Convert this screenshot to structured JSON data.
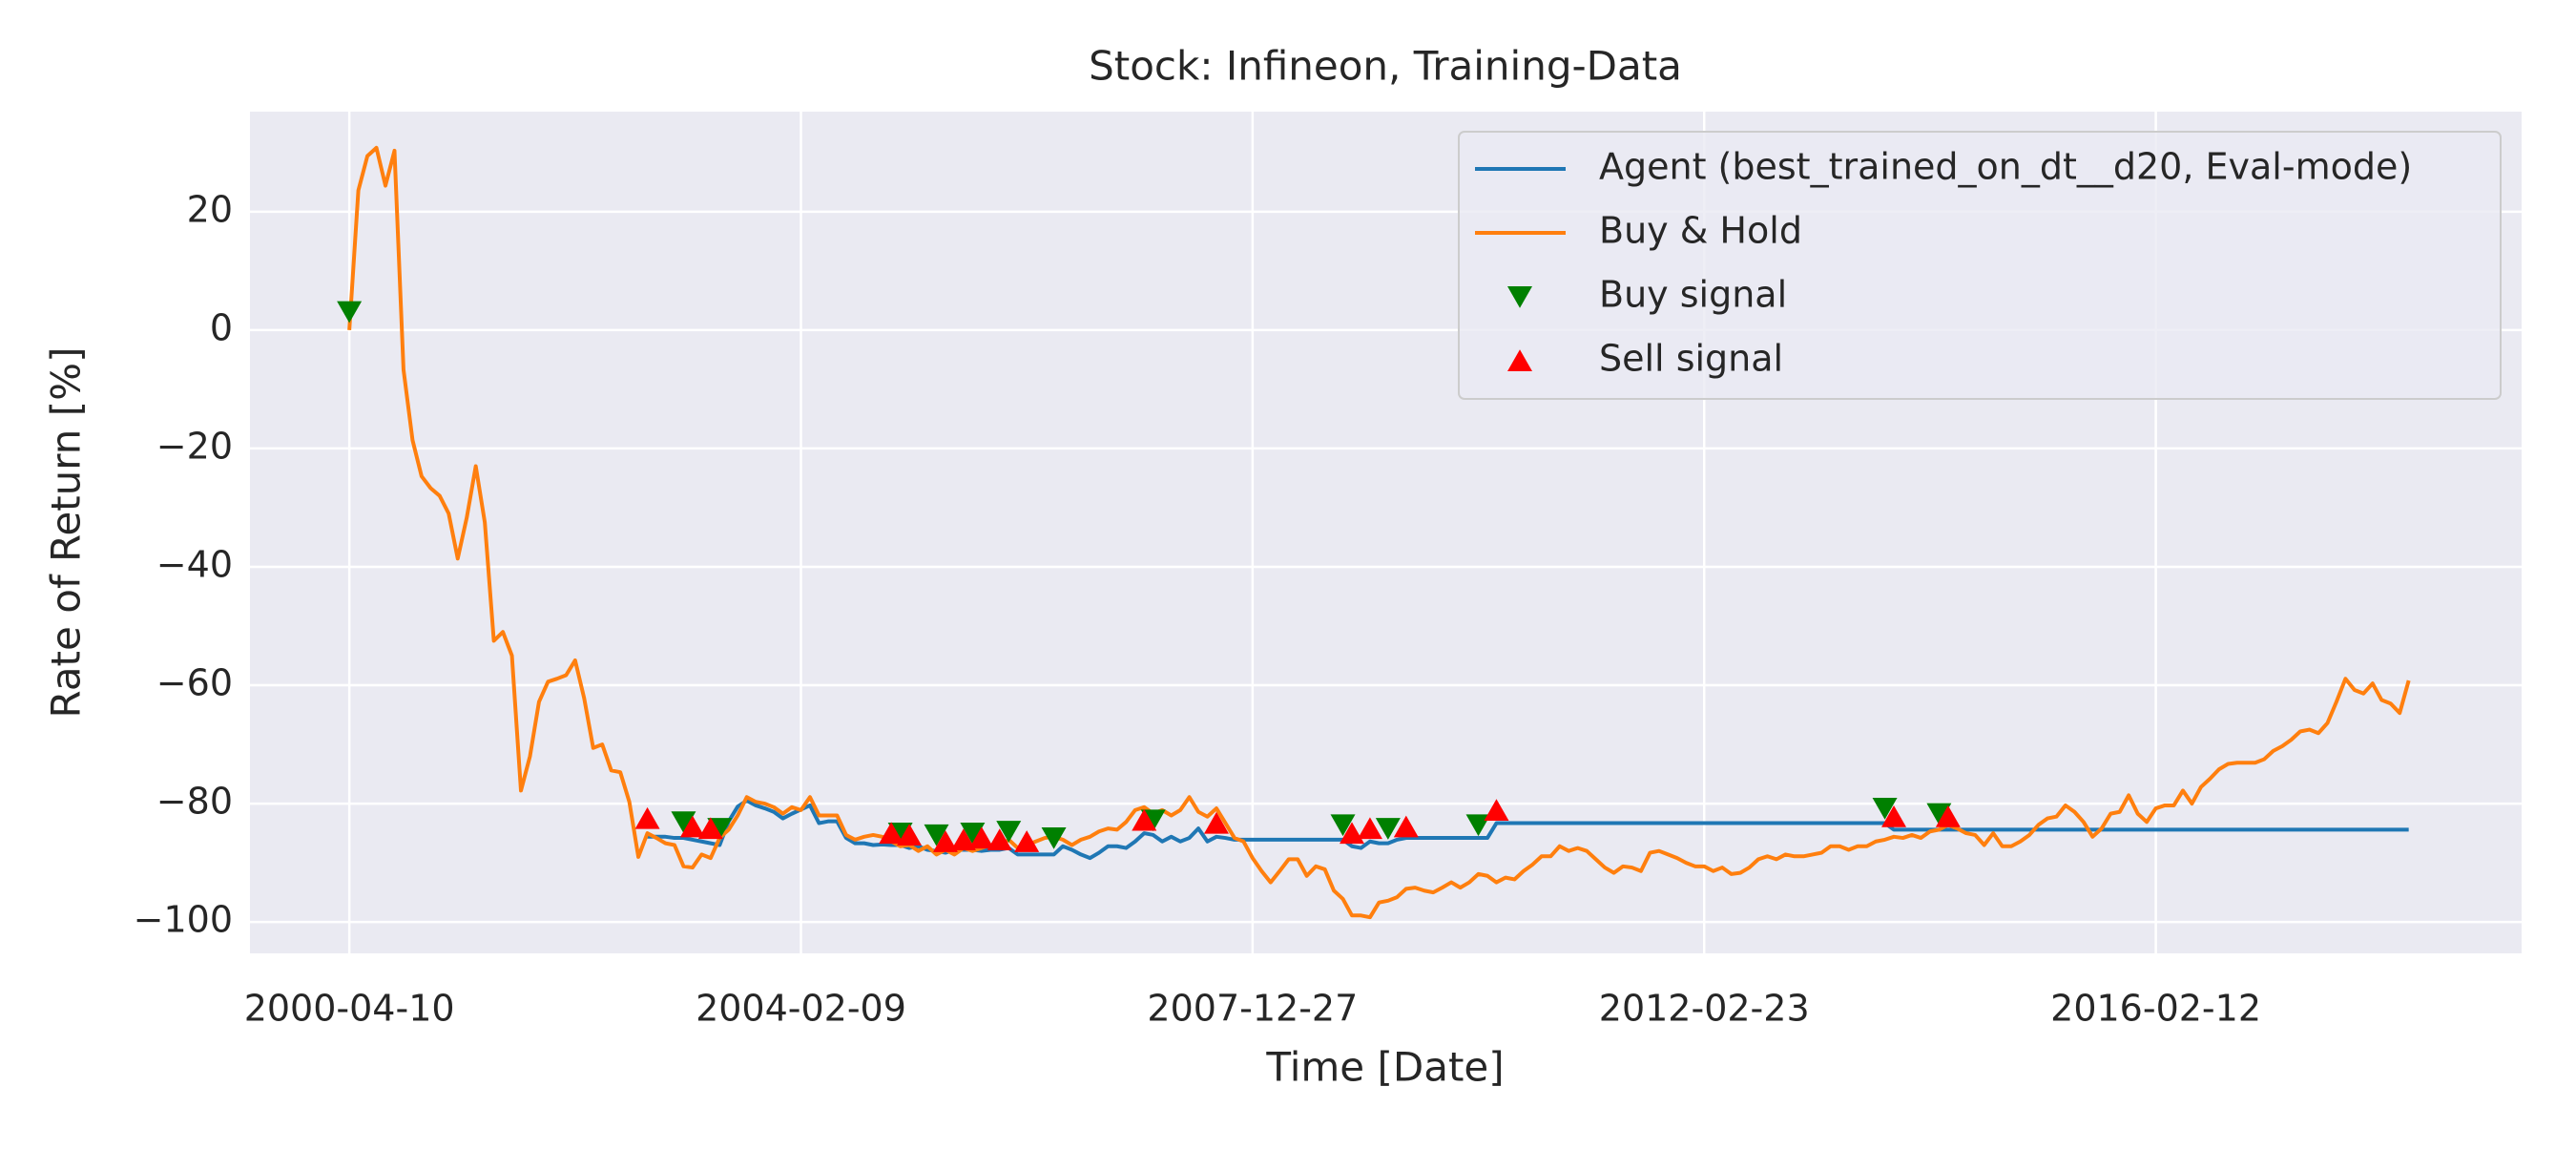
{
  "chart_data": {
    "type": "line",
    "title": "Stock: Infineon, Training-Data",
    "x_label": "Time [Date]",
    "y_label": "Rate of Return [%]",
    "x": [
      0,
      1,
      2,
      3,
      4,
      5,
      6,
      7,
      8,
      9,
      10,
      11,
      12,
      13,
      14,
      15,
      16,
      17,
      18,
      19,
      20,
      21,
      22,
      23,
      24,
      25,
      26,
      27,
      28,
      29,
      30,
      31,
      32,
      33,
      34,
      35,
      36,
      37,
      38,
      39,
      40,
      41,
      42,
      43,
      44,
      45,
      46,
      47,
      48,
      49,
      50,
      51,
      52,
      53,
      54,
      55,
      56,
      57,
      58,
      59,
      60,
      61,
      62,
      63,
      64,
      65,
      66,
      67,
      68,
      69,
      70,
      71,
      72,
      73,
      74,
      75,
      76,
      77,
      78,
      79,
      80,
      81,
      82,
      83,
      84,
      85,
      86,
      87,
      88,
      89,
      90,
      91,
      92,
      93,
      94,
      95,
      96,
      97,
      98,
      99,
      100,
      101,
      102,
      103,
      104,
      105,
      106,
      107,
      108,
      109,
      110,
      111,
      112,
      113,
      114,
      115,
      116,
      117,
      118,
      119,
      120,
      121,
      122,
      123,
      124,
      125,
      126,
      127,
      128,
      129,
      130,
      131,
      132,
      133,
      134,
      135,
      136,
      137,
      138,
      139,
      140,
      141,
      142,
      143,
      144,
      145,
      146,
      147,
      148,
      149,
      150,
      151,
      152,
      153,
      154,
      155,
      156,
      157,
      158,
      159,
      160,
      161,
      162,
      163,
      164,
      165,
      166,
      167,
      168,
      169,
      170,
      171,
      172,
      173,
      174,
      175,
      176,
      177,
      178,
      179,
      180,
      181,
      182,
      183,
      184,
      185,
      186,
      187,
      188,
      189,
      190,
      191,
      192,
      193,
      194,
      195,
      196,
      197,
      198,
      199,
      200,
      201,
      202,
      203,
      204,
      205,
      206,
      207,
      208,
      209,
      210,
      211,
      212,
      213,
      214,
      215,
      216,
      217,
      218,
      219,
      220,
      221,
      222,
      223,
      224,
      225,
      226,
      227,
      228
    ],
    "series": [
      {
        "name": "Agent (best_trained_on_dt__d20, Eval-mode)",
        "color": "#1f77b4",
        "values": [
          null,
          null,
          null,
          null,
          null,
          null,
          null,
          null,
          null,
          null,
          null,
          null,
          null,
          null,
          null,
          null,
          null,
          null,
          null,
          null,
          null,
          null,
          null,
          null,
          null,
          null,
          null,
          null,
          null,
          null,
          null,
          null,
          null,
          -85.6,
          -85.6,
          -85.6,
          -85.8,
          -85.8,
          -86.1,
          -86.4,
          -86.7,
          -87,
          -83,
          -80.5,
          -79.5,
          -80.3,
          -80.8,
          -81.4,
          -82.5,
          -81.7,
          -81,
          -80.3,
          -83.3,
          -83,
          -83,
          -85.8,
          -86.7,
          -86.7,
          -87,
          -86.9,
          -87,
          -87,
          -87.5,
          -87.2,
          -87.8,
          -88,
          -88.3,
          -87.8,
          -87.8,
          -87.8,
          -88,
          -87.8,
          -87.8,
          -87.5,
          -88.6,
          -88.6,
          -88.6,
          -88.6,
          -88.6,
          -87.2,
          -87.8,
          -88.6,
          -89.2,
          -88.3,
          -87.2,
          -87.2,
          -87.5,
          -86.4,
          -85,
          -85.3,
          -86.4,
          -85.6,
          -86.4,
          -85.8,
          -84.2,
          -86.4,
          -85.6,
          -85.8,
          -86.1,
          -86.1,
          -86.1,
          -86.1,
          -86.1,
          -86.1,
          -86.1,
          -86.1,
          -86.1,
          -86.1,
          -86.1,
          -86.1,
          -86.1,
          -87.2,
          -87.5,
          -86.4,
          -86.7,
          -86.7,
          -86.1,
          -85.8,
          -85.8,
          -85.8,
          -85.8,
          -85.8,
          -85.8,
          -85.8,
          -85.8,
          -85.8,
          -85.8,
          -83.3,
          -83.3,
          -83.3,
          -83.3,
          -83.3,
          -83.3,
          -83.3,
          -83.3,
          -83.3,
          -83.3,
          -83.3,
          -83.3,
          -83.3,
          -83.3,
          -83.3,
          -83.3,
          -83.3,
          -83.3,
          -83.3,
          -83.3,
          -83.3,
          -83.3,
          -83.3,
          -83.3,
          -83.3,
          -83.3,
          -83.3,
          -83.3,
          -83.3,
          -83.3,
          -83.3,
          -83.3,
          -83.3,
          -83.3,
          -83.3,
          -83.3,
          -83.3,
          -83.3,
          -83.3,
          -83.3,
          -83.3,
          -83.3,
          -83.3,
          -83.3,
          -84.4,
          -84.4,
          -84.4,
          -84.4,
          -84.4,
          -84.4,
          -84.4,
          -84.4,
          -84.4,
          -84.4,
          -84.4,
          -84.4,
          -84.4,
          -84.4,
          -84.4,
          -84.4,
          -84.4,
          -84.4,
          -84.4,
          -84.4,
          -84.4,
          -84.4,
          -84.4,
          -84.4,
          -84.4,
          -84.4,
          -84.4,
          -84.4,
          -84.4,
          -84.4,
          -84.4,
          -84.4,
          -84.4,
          -84.4,
          -84.4,
          -84.4,
          -84.4,
          -84.4,
          -84.4,
          -84.4,
          -84.4,
          -84.4,
          -84.4,
          -84.4,
          -84.4,
          -84.4,
          -84.4,
          -84.4,
          -84.4,
          -84.4,
          -84.4,
          -84.4,
          -84.4,
          -84.4,
          -84.4,
          -84.4,
          -84.4,
          -84.4
        ]
      },
      {
        "name": "Buy & Hold",
        "color": "#ff7f0e",
        "values": [
          0,
          23.6,
          29.4,
          30.8,
          24.4,
          30.3,
          -6.7,
          -18.6,
          -24.7,
          -26.7,
          -28,
          -31,
          -38.6,
          -31.7,
          -23,
          -32.5,
          -52.5,
          -51,
          -55,
          -77.8,
          -72,
          -62.8,
          -59.4,
          -58.9,
          -58.3,
          -55.8,
          -62.2,
          -70.6,
          -70,
          -74.4,
          -74.7,
          -79.7,
          -89,
          -85,
          -85.8,
          -86.7,
          -87,
          -90.6,
          -90.8,
          -88.6,
          -89.2,
          -85.8,
          -84.4,
          -82,
          -78.9,
          -79.7,
          -80,
          -80.6,
          -81.7,
          -80.6,
          -81.1,
          -78.9,
          -82,
          -82,
          -82,
          -85.3,
          -86.1,
          -85.6,
          -85.3,
          -85.6,
          -86.4,
          -87.2,
          -87,
          -88,
          -87.2,
          -88.6,
          -87.8,
          -88.6,
          -87.5,
          -88,
          -87.5,
          -87,
          -87.2,
          -86.1,
          -87.5,
          -87,
          -86.4,
          -85.8,
          -85.6,
          -86.1,
          -87,
          -86.1,
          -85.6,
          -84.7,
          -84.2,
          -84.4,
          -83.1,
          -81.1,
          -80.6,
          -81.7,
          -81.1,
          -82,
          -81.1,
          -78.9,
          -81.4,
          -82.2,
          -80.8,
          -83.3,
          -85.8,
          -86.4,
          -89.2,
          -91.4,
          -93.3,
          -91.4,
          -89.4,
          -89.4,
          -92.2,
          -90.6,
          -91.1,
          -94.7,
          -96.1,
          -98.9,
          -98.9,
          -99.2,
          -96.7,
          -96.4,
          -95.8,
          -94.4,
          -94.2,
          -94.7,
          -95,
          -94.2,
          -93.3,
          -94.2,
          -93.3,
          -91.9,
          -92.2,
          -93.3,
          -92.5,
          -92.8,
          -91.4,
          -90.3,
          -88.9,
          -88.9,
          -87.2,
          -88,
          -87.5,
          -88,
          -89.4,
          -90.8,
          -91.7,
          -90.6,
          -90.8,
          -91.4,
          -88.3,
          -88,
          -88.6,
          -89.2,
          -90,
          -90.6,
          -90.6,
          -91.4,
          -90.8,
          -91.9,
          -91.7,
          -90.8,
          -89.4,
          -88.9,
          -89.4,
          -88.6,
          -88.9,
          -88.9,
          -88.6,
          -88.3,
          -87.2,
          -87.2,
          -87.8,
          -87.2,
          -87.2,
          -86.4,
          -86.1,
          -85.6,
          -85.8,
          -85.3,
          -85.8,
          -84.7,
          -84.4,
          -83.6,
          -84.2,
          -85,
          -85.3,
          -87,
          -85,
          -87.2,
          -87.2,
          -86.4,
          -85.3,
          -83.6,
          -82.5,
          -82.2,
          -80.3,
          -81.4,
          -83.1,
          -85.6,
          -84.2,
          -81.7,
          -81.4,
          -78.6,
          -81.7,
          -83.1,
          -80.8,
          -80.3,
          -80.3,
          -77.8,
          -80,
          -77.2,
          -75.8,
          -74.2,
          -73.3,
          -73.1,
          -73.1,
          -73.1,
          -72.5,
          -71.1,
          -70.3,
          -69.2,
          -67.8,
          -67.5,
          -68.1,
          -66.4,
          -62.8,
          -58.9,
          -60.8,
          -61.4,
          -59.7,
          -62.5,
          -63.1,
          -64.7,
          -59.2
        ]
      },
      {
        "name": "Buy signal",
        "color": "#008000",
        "marker": "v",
        "x": [
          0,
          37,
          41,
          61,
          65,
          69,
          73,
          78,
          89,
          110,
          115,
          125,
          170,
          176
        ],
        "values": [
          3.1,
          -83.1,
          -84.2,
          -85,
          -85.3,
          -85,
          -84.7,
          -85.8,
          -82.8,
          -83.6,
          -84.2,
          -83.6,
          -80.8,
          -81.7
        ]
      },
      {
        "name": "Sell signal",
        "color": "#ff0000",
        "marker": "^",
        "x": [
          33,
          38,
          40,
          60,
          62,
          66,
          68,
          70,
          72,
          75,
          88,
          96,
          111,
          113,
          117,
          127,
          171,
          177
        ],
        "values": [
          -82.5,
          -83.9,
          -84.2,
          -85,
          -85.3,
          -86.4,
          -86.1,
          -85.8,
          -86.1,
          -86.4,
          -82.8,
          -83.3,
          -85,
          -84.2,
          -83.9,
          -81.1,
          -82.2,
          -82.2
        ]
      }
    ],
    "xlim": [
      -11,
      240.5
    ],
    "xticks": [
      {
        "value": 0,
        "label": "2000-04-10"
      },
      {
        "value": 50,
        "label": "2004-02-09"
      },
      {
        "value": 100,
        "label": "2007-12-27"
      },
      {
        "value": 150,
        "label": "2012-02-23"
      },
      {
        "value": 200,
        "label": "2016-02-12"
      }
    ],
    "ylim": [
      -105.3,
      36.9
    ],
    "yticks": [
      {
        "value": -100,
        "label": "−100"
      },
      {
        "value": -80,
        "label": "−80"
      },
      {
        "value": -60,
        "label": "−60"
      },
      {
        "value": -40,
        "label": "−40"
      },
      {
        "value": -20,
        "label": "−20"
      },
      0,
      20
    ],
    "grid": true,
    "legend": "upper right"
  }
}
